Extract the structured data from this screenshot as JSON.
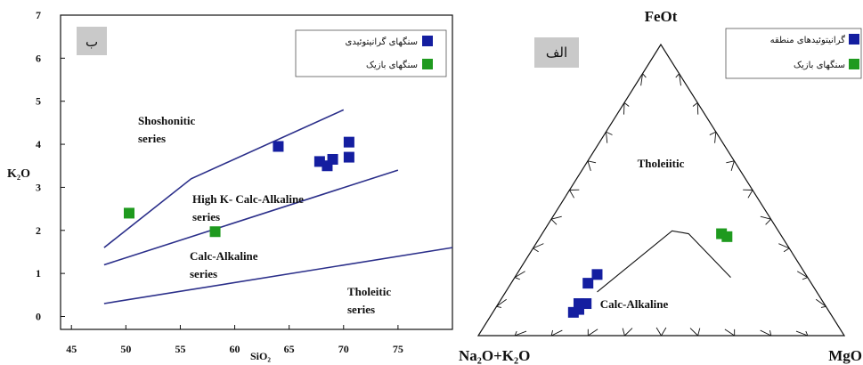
{
  "colors": {
    "granitoid": "#141ea0",
    "basic": "#1f9a1f",
    "line": "#2b2f8a",
    "axis": "#111111",
    "panel_tag_bg": "#c9c9c9"
  },
  "chart_data": [
    {
      "type": "scatter",
      "panel_tag": "ب",
      "xlabel": "SiO₂",
      "ylabel": "K₂O",
      "xticks": [
        "45",
        "50",
        "55",
        "60",
        "65",
        "70",
        "75"
      ],
      "yticks": [
        "0",
        "1",
        "2",
        "3",
        "4",
        "5",
        "6",
        "7"
      ],
      "xlim": [
        44,
        80
      ],
      "ylim": [
        -0.3,
        7
      ],
      "grid": false,
      "legend_position": "top-right",
      "series": [
        {
          "name": "سنگهای گرانیتوئیدی",
          "color_key": "granitoid",
          "points": [
            [
              64,
              3.95
            ],
            [
              67.8,
              3.6
            ],
            [
              68.5,
              3.5
            ],
            [
              69,
              3.65
            ],
            [
              70.5,
              3.7
            ],
            [
              70.5,
              4.05
            ]
          ]
        },
        {
          "name": "سنگهای بازیک",
          "color_key": "basic",
          "points": [
            [
              50.3,
              2.4
            ],
            [
              58.2,
              1.97
            ]
          ]
        }
      ],
      "boundaries": [
        [
          [
            48,
            1.6
          ],
          [
            56,
            3.2
          ],
          [
            70,
            4.8
          ]
        ],
        [
          [
            48,
            1.2
          ],
          [
            75,
            3.4
          ]
        ],
        [
          [
            48,
            0.3
          ],
          [
            80,
            1.6
          ]
        ]
      ],
      "field_labels": [
        "Shoshonitic",
        "series",
        "High K- Calc-Alkaline",
        "series",
        "Calc-Alkaline",
        "series",
        "Tholeitic",
        "series"
      ]
    },
    {
      "type": "ternary",
      "panel_tag": "الف",
      "vertices": [
        "FeOt",
        "Na₂O+K₂O",
        "MgO"
      ],
      "grid": false,
      "legend_position": "top-right",
      "series": [
        {
          "name": "گرانیتوئیدهای منطقه",
          "color_key": "granitoid",
          "points": [
            [
              21,
              57,
              22
            ],
            [
              18,
              61,
              21
            ],
            [
              11,
              65,
              24
            ],
            [
              11,
              67,
              22
            ],
            [
              8,
              70,
              22
            ],
            [
              9,
              68,
              23
            ]
          ]
        },
        {
          "name": "سنگهای بازیک",
          "color_key": "basic",
          "points": [
            [
              35,
              16,
              49
            ],
            [
              34,
              15,
              51
            ]
          ]
        }
      ],
      "boundary": [
        [
          15,
          60,
          25
        ],
        [
          36,
          29,
          35
        ],
        [
          35,
          25,
          40
        ],
        [
          20,
          21,
          59
        ]
      ],
      "field_labels": [
        "Tholeiitic",
        "Calc-Alkaline"
      ]
    }
  ]
}
